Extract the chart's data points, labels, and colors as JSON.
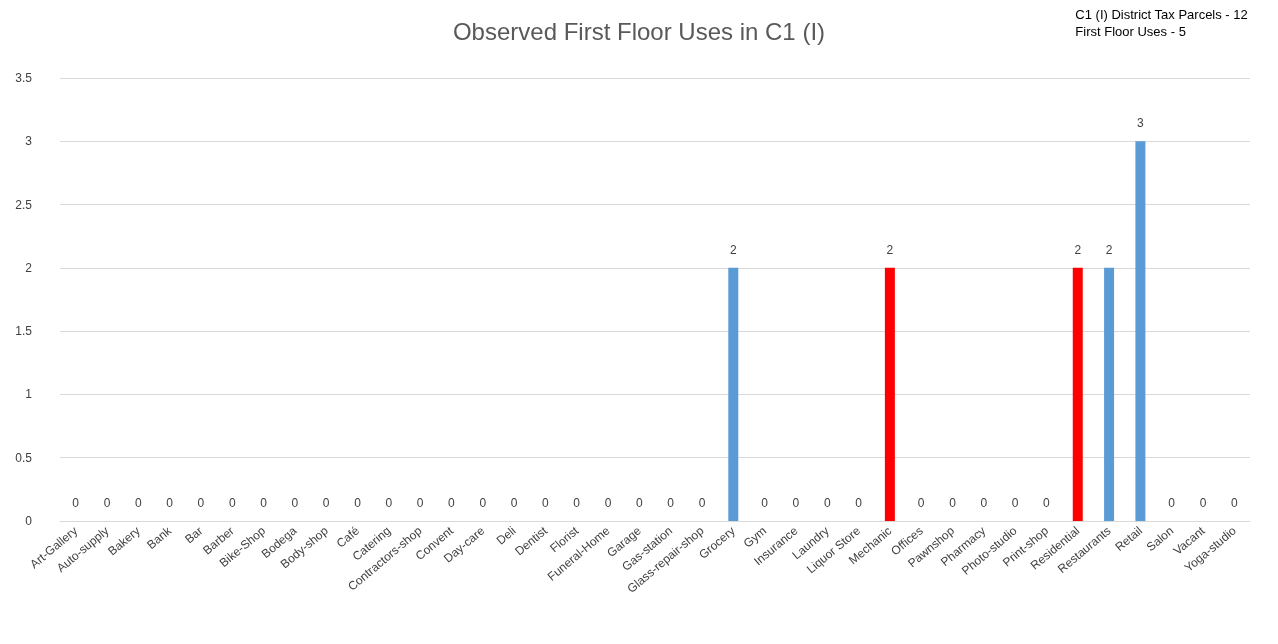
{
  "chart_data": {
    "type": "bar",
    "title": "Observed First Floor Uses in C1 (I)",
    "categories": [
      "Art-Gallery",
      "Auto-supply",
      "Bakery",
      "Bank",
      "Bar",
      "Barber",
      "Bike-Shop",
      "Bodega",
      "Body-shop",
      "Café",
      "Catering",
      "Contractors-shop",
      "Convent",
      "Day-care",
      "Deli",
      "Dentist",
      "Florist",
      "Funeral-Home",
      "Garage",
      "Gas-station",
      "Glass-repair-shop",
      "Grocery",
      "Gym",
      "Insurance",
      "Laundry",
      "Liquor Store",
      "Mechanic",
      "Offices",
      "Pawnshop",
      "Pharmacy",
      "Photo-studio",
      "Print-shop",
      "Residential",
      "Restaurants",
      "Retail",
      "Salon",
      "Vacant",
      "Yoga-studio"
    ],
    "values": [
      0,
      0,
      0,
      0,
      0,
      0,
      0,
      0,
      0,
      0,
      0,
      0,
      0,
      0,
      0,
      0,
      0,
      0,
      0,
      0,
      0,
      2,
      0,
      0,
      0,
      0,
      2,
      0,
      0,
      0,
      0,
      0,
      2,
      2,
      3,
      0,
      0,
      0
    ],
    "colors": [
      "#5b9bd5",
      "#5b9bd5",
      "#5b9bd5",
      "#5b9bd5",
      "#5b9bd5",
      "#5b9bd5",
      "#5b9bd5",
      "#5b9bd5",
      "#5b9bd5",
      "#5b9bd5",
      "#5b9bd5",
      "#5b9bd5",
      "#5b9bd5",
      "#5b9bd5",
      "#5b9bd5",
      "#5b9bd5",
      "#5b9bd5",
      "#5b9bd5",
      "#5b9bd5",
      "#5b9bd5",
      "#5b9bd5",
      "#5b9bd5",
      "#5b9bd5",
      "#5b9bd5",
      "#5b9bd5",
      "#5b9bd5",
      "#ff0000",
      "#5b9bd5",
      "#5b9bd5",
      "#5b9bd5",
      "#5b9bd5",
      "#5b9bd5",
      "#ff0000",
      "#5b9bd5",
      "#5b9bd5",
      "#5b9bd5",
      "#5b9bd5",
      "#5b9bd5"
    ],
    "ylim": [
      0,
      3.5
    ],
    "yticks": [
      0,
      0.5,
      1,
      1.5,
      2,
      2.5,
      3,
      3.5
    ],
    "grid": "y",
    "data_labels": true,
    "annotations": [
      "C1 (I) District Tax Parcels - 12",
      "First Floor Uses - 5"
    ]
  }
}
